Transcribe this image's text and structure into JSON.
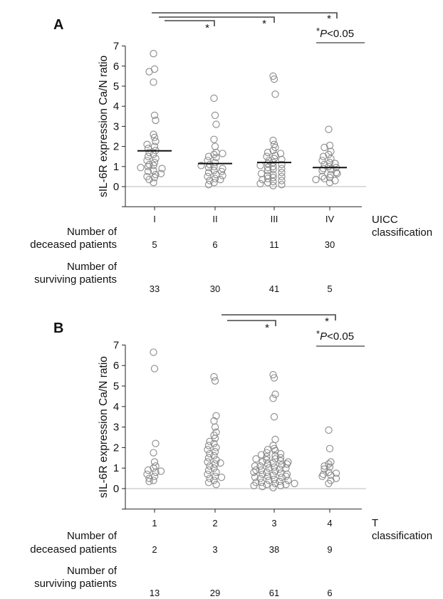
{
  "chart_data": [
    {
      "panel_label": "A",
      "type": "scatter",
      "ylabel": "sIL-6R expression Ca/N ratio",
      "xlabel": "UICC classification",
      "ylim": [
        -1,
        7
      ],
      "yticks": [
        "-",
        "0",
        "1",
        "2",
        "3",
        "4",
        "5",
        "6",
        "7"
      ],
      "categories": [
        "I",
        "II",
        "III",
        "IV"
      ],
      "medians": [
        1.78,
        1.15,
        1.2,
        0.95
      ],
      "points": [
        [
          6.62,
          5.85,
          5.72,
          5.2,
          3.55,
          3.3,
          2.6,
          2.45,
          2.25,
          2.1,
          2.0,
          1.8,
          1.6,
          1.5,
          1.4,
          1.3,
          1.2,
          1.1,
          1.05,
          1.0,
          0.9,
          0.8,
          0.75,
          0.6,
          0.5,
          0.45,
          0.35,
          0.2,
          1.9,
          1.7,
          0.95,
          0.65
        ],
        [
          4.4,
          3.55,
          3.1,
          2.35,
          2.0,
          1.7,
          1.6,
          1.5,
          1.45,
          1.3,
          1.2,
          1.1,
          1.0,
          0.95,
          0.9,
          0.8,
          0.7,
          0.6,
          0.5,
          0.4,
          0.3,
          0.2,
          0.1,
          1.65,
          1.05,
          0.75,
          0.55,
          0.35
        ],
        [
          5.5,
          5.35,
          4.6,
          2.3,
          2.1,
          1.95,
          1.8,
          1.7,
          1.55,
          1.5,
          1.4,
          1.3,
          1.2,
          1.15,
          1.1,
          1.0,
          0.95,
          0.9,
          0.85,
          0.8,
          0.7,
          0.6,
          0.55,
          0.5,
          0.45,
          0.4,
          0.3,
          0.25,
          0.2,
          0.1,
          0.05,
          1.65,
          1.35,
          1.05,
          0.65,
          0.35,
          0.15
        ],
        [
          2.85,
          2.05,
          1.95,
          1.6,
          1.5,
          1.4,
          1.3,
          1.2,
          1.1,
          1.0,
          0.9,
          0.85,
          0.8,
          0.7,
          0.6,
          0.5,
          0.45,
          0.4,
          0.3,
          0.2,
          1.75,
          1.15,
          0.95,
          0.65,
          0.35
        ]
      ],
      "significance_marker": "*",
      "brackets": [
        {
          "from": "I",
          "to": "II",
          "label": "*"
        },
        {
          "from": "I",
          "to": "III",
          "label": "*"
        },
        {
          "from": "I",
          "to": "IV",
          "label": "*"
        }
      ],
      "p_label": {
        "star": "*",
        "p": "P",
        "rest": "<0.05"
      },
      "row1_label": [
        "Number of",
        "deceased patients"
      ],
      "row1_values": [
        "5",
        "6",
        "11",
        "30"
      ],
      "row2_label": [
        "Number of",
        "surviving patients"
      ],
      "row2_values": [
        "33",
        "30",
        "41",
        "5"
      ],
      "classification_label": [
        "UICC",
        "classification"
      ]
    },
    {
      "panel_label": "B",
      "type": "scatter",
      "ylabel": "sIL-6R expression Ca/N ratio",
      "xlabel": "T classification",
      "ylim": [
        -1,
        7
      ],
      "yticks": [
        "-",
        "0",
        "1",
        "2",
        "3",
        "4",
        "5",
        "6",
        "7"
      ],
      "categories": [
        "1",
        "2",
        "3",
        "4"
      ],
      "points": [
        [
          6.65,
          5.85,
          2.2,
          1.75,
          1.3,
          1.1,
          1.0,
          0.9,
          0.8,
          0.7,
          0.6,
          0.5,
          0.4,
          0.85,
          0.35
        ],
        [
          5.45,
          5.25,
          3.55,
          3.3,
          3.0,
          2.75,
          2.6,
          2.45,
          2.3,
          2.2,
          2.1,
          2.0,
          1.9,
          1.8,
          1.7,
          1.6,
          1.5,
          1.4,
          1.3,
          1.2,
          1.1,
          1.0,
          0.9,
          0.8,
          0.7,
          0.6,
          0.5,
          0.4,
          0.3,
          0.2,
          1.25,
          0.55
        ],
        [
          5.55,
          5.4,
          4.6,
          4.4,
          3.5,
          2.4,
          2.1,
          1.95,
          1.85,
          1.75,
          1.7,
          1.6,
          1.55,
          1.5,
          1.45,
          1.4,
          1.35,
          1.3,
          1.25,
          1.2,
          1.15,
          1.1,
          1.05,
          1.0,
          0.95,
          0.9,
          0.85,
          0.8,
          0.75,
          0.7,
          0.65,
          0.6,
          0.55,
          0.5,
          0.45,
          0.4,
          0.35,
          0.3,
          0.25,
          0.2,
          0.15,
          0.1,
          0.05,
          1.65,
          1.3,
          1.0,
          0.7,
          0.4,
          0.2,
          1.9,
          0.9,
          0.6,
          1.2,
          0.3,
          0.15,
          0.55,
          1.45,
          0.8,
          1.1,
          0.25
        ],
        [
          2.85,
          1.95,
          1.3,
          1.2,
          1.05,
          0.95,
          0.8,
          0.7,
          0.65,
          0.6,
          0.5,
          0.4,
          0.25,
          0.75,
          1.1
        ]
      ],
      "significance_marker": "*",
      "brackets": [
        {
          "from": "2",
          "to": "3",
          "label": "*"
        },
        {
          "from": "2",
          "to": "4",
          "label": "*"
        }
      ],
      "p_label": {
        "star": "*",
        "p": "P",
        "rest": "<0.05"
      },
      "row1_label": [
        "Number of",
        "deceased patients"
      ],
      "row1_values": [
        "2",
        "3",
        "38",
        "9"
      ],
      "row2_label": [
        "Number of",
        "surviving patients"
      ],
      "row2_values": [
        "13",
        "29",
        "61",
        "6"
      ],
      "classification_label": [
        "T",
        "classification"
      ]
    }
  ]
}
